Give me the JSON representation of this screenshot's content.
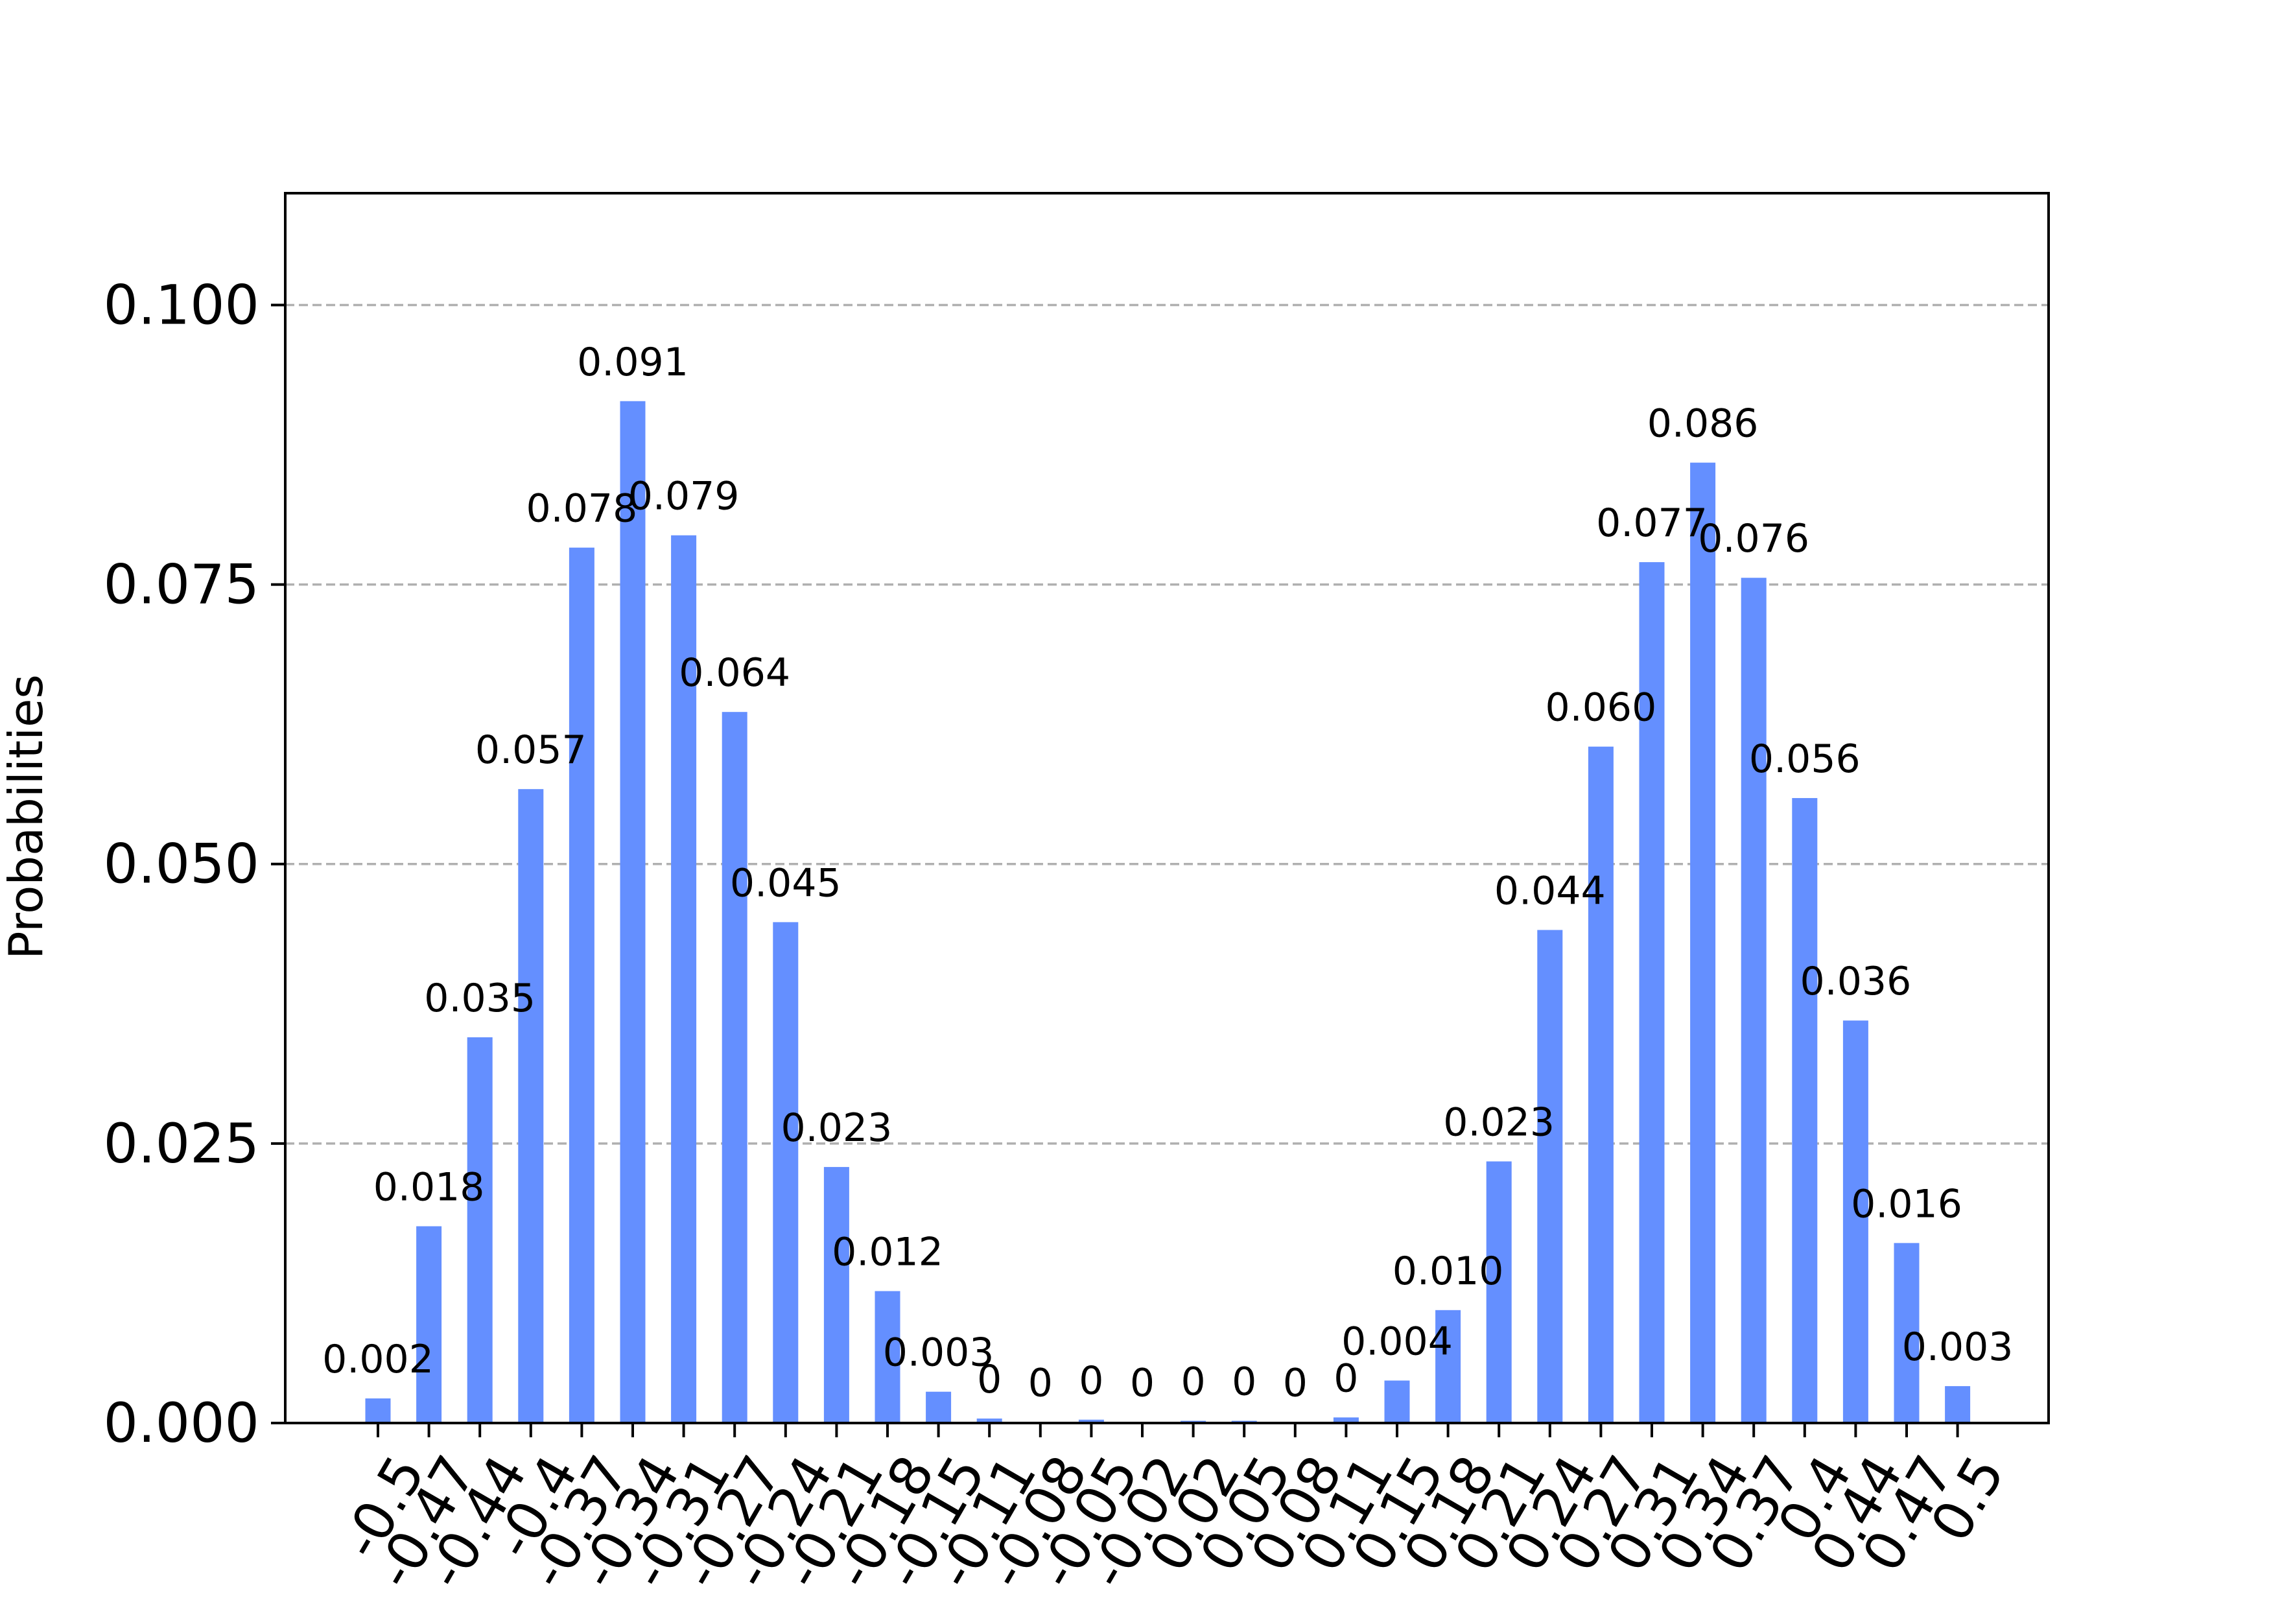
{
  "chart_data": {
    "type": "bar",
    "title": "",
    "xlabel": "",
    "ylabel": "Probabilities",
    "ylim": [
      0,
      0.11
    ],
    "yticks": [
      "0.000",
      "0.025",
      "0.050",
      "0.075",
      "0.100"
    ],
    "ytick_values": [
      0,
      0.025,
      0.05,
      0.075,
      0.1
    ],
    "grid": "horizontal dashed",
    "bar_color": "#648fff",
    "grid_color": "#b0b0b0",
    "categories": [
      "-0.5",
      "-0.47",
      "-0.44",
      "-0.4",
      "-0.37",
      "-0.34",
      "-0.31",
      "-0.27",
      "-0.24",
      "-0.21",
      "-0.18",
      "-0.15",
      "-0.11",
      "-0.08",
      "-0.05",
      "-0.02",
      "0.02",
      "0.05",
      "0.08",
      "0.11",
      "0.15",
      "0.18",
      "0.21",
      "0.24",
      "0.27",
      "0.31",
      "0.34",
      "0.37",
      "0.4",
      "0.44",
      "0.47",
      "0.5"
    ],
    "values": [
      0.0022,
      0.0176,
      0.0345,
      0.0567,
      0.0783,
      0.0914,
      0.0794,
      0.0636,
      0.0448,
      0.0229,
      0.0118,
      0.0028,
      0.0004,
      0.0001,
      0.0003,
      0.0001,
      0.0002,
      0.0002,
      0.0001,
      0.0005,
      0.0038,
      0.0101,
      0.0234,
      0.0441,
      0.0605,
      0.077,
      0.0859,
      0.0756,
      0.0559,
      0.036,
      0.0161,
      0.0033
    ],
    "data_labels": [
      "0.002",
      "0.018",
      "0.035",
      "0.057",
      "0.078",
      "0.091",
      "0.079",
      "0.064",
      "0.045",
      "0.023",
      "0.012",
      "0.003",
      "0",
      "0",
      "0",
      "0",
      "0",
      "0",
      "0",
      "0",
      "0.004",
      "0.010",
      "0.023",
      "0.044",
      "0.060",
      "0.077",
      "0.086",
      "0.076",
      "0.056",
      "0.036",
      "0.016",
      "0.003"
    ]
  }
}
